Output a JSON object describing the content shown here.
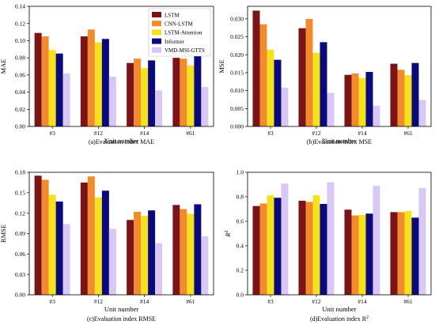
{
  "colors": [
    "#7b1416",
    "#f28a2e",
    "#f5e11c",
    "#0a0a7a",
    "#d9c7f5"
  ],
  "chart_data": [
    {
      "type": "bar",
      "caption": "(a)Evaluation index MAE",
      "xlabel": "Unit number",
      "ylabel": "MAE",
      "ylabel_sup": "",
      "ylim": [
        0,
        0.14
      ],
      "yticks": [
        0,
        0.02,
        0.04,
        0.06,
        0.08,
        0.1,
        0.12,
        0.14
      ],
      "ytick_labels": [
        "0.00",
        "0.02",
        "0.04",
        "0.06",
        "0.08",
        "0.10",
        "0.12",
        "0.14"
      ],
      "categories": [
        "#3",
        "#12",
        "#14",
        "#61"
      ],
      "legend": true,
      "legend_position": "top-right",
      "series": [
        {
          "name": "LSTM",
          "values": [
            0.109,
            0.105,
            0.074,
            0.08
          ]
        },
        {
          "name": "CNN-LSTM",
          "values": [
            0.105,
            0.113,
            0.079,
            0.079
          ]
        },
        {
          "name": "LSTM-Attention",
          "values": [
            0.089,
            0.098,
            0.068,
            0.071
          ]
        },
        {
          "name": "Informer",
          "values": [
            0.085,
            0.102,
            0.077,
            0.084
          ]
        },
        {
          "name": "VMD-MSI-GTTS",
          "values": [
            0.062,
            0.058,
            0.042,
            0.046
          ]
        }
      ]
    },
    {
      "type": "bar",
      "caption": "(b)Evaluation index MSE",
      "xlabel": "Unit number",
      "ylabel": "MSE",
      "ylabel_sup": "",
      "ylim": [
        0,
        0.0335
      ],
      "yticks": [
        0,
        0.005,
        0.01,
        0.015,
        0.02,
        0.025,
        0.03
      ],
      "ytick_labels": [
        "0.000",
        "0.005",
        "0.010",
        "0.015",
        "0.020",
        "0.025",
        "0.030"
      ],
      "categories": [
        "#3",
        "#12",
        "#14",
        "#61"
      ],
      "legend": false,
      "series": [
        {
          "name": "LSTM",
          "values": [
            0.0323,
            0.0274,
            0.0144,
            0.0175
          ]
        },
        {
          "name": "CNN-LSTM",
          "values": [
            0.0285,
            0.03,
            0.0148,
            0.0158
          ]
        },
        {
          "name": "LSTM-Attention",
          "values": [
            0.0214,
            0.0205,
            0.0135,
            0.0143
          ]
        },
        {
          "name": "Informer",
          "values": [
            0.0186,
            0.0235,
            0.0152,
            0.0177
          ]
        },
        {
          "name": "VMD-MSI-GTTS",
          "values": [
            0.0108,
            0.0094,
            0.0058,
            0.0074
          ]
        }
      ]
    },
    {
      "type": "bar",
      "caption": "(c)Evaluation index RMSE",
      "xlabel": "Unit number",
      "ylabel": "RMSE",
      "ylabel_sup": "",
      "ylim": [
        0,
        0.18
      ],
      "yticks": [
        0,
        0.03,
        0.06,
        0.09,
        0.12,
        0.15,
        0.18
      ],
      "ytick_labels": [
        "0.00",
        "0.03",
        "0.06",
        "0.09",
        "0.12",
        "0.15",
        "0.18"
      ],
      "categories": [
        "#3",
        "#12",
        "#14",
        "#61"
      ],
      "legend": false,
      "series": [
        {
          "name": "LSTM",
          "values": [
            0.175,
            0.165,
            0.11,
            0.132
          ]
        },
        {
          "name": "CNN-LSTM",
          "values": [
            0.169,
            0.174,
            0.122,
            0.126
          ]
        },
        {
          "name": "LSTM-Attention",
          "values": [
            0.147,
            0.143,
            0.116,
            0.119
          ]
        },
        {
          "name": "Informer",
          "values": [
            0.137,
            0.153,
            0.124,
            0.133
          ]
        },
        {
          "name": "VMD-MSI-GTTS",
          "values": [
            0.104,
            0.097,
            0.076,
            0.086
          ]
        }
      ]
    },
    {
      "type": "bar",
      "caption": "(d)Evaluation index R",
      "caption_sup": "2",
      "xlabel": "Unit number",
      "ylabel": "R",
      "ylabel_sup": "2",
      "ylim": [
        0,
        1.0
      ],
      "yticks": [
        0,
        0.2,
        0.4,
        0.6,
        0.8,
        1.0
      ],
      "ytick_labels": [
        "0.0",
        "0.2",
        "0.4",
        "0.6",
        "0.8",
        "1.0"
      ],
      "categories": [
        "#3",
        "#12",
        "#14",
        "#61"
      ],
      "legend": false,
      "series": [
        {
          "name": "LSTM",
          "values": [
            0.725,
            0.768,
            0.695,
            0.675
          ]
        },
        {
          "name": "CNN-LSTM",
          "values": [
            0.745,
            0.758,
            0.648,
            0.675
          ]
        },
        {
          "name": "LSTM-Attention",
          "values": [
            0.812,
            0.812,
            0.652,
            0.685
          ]
        },
        {
          "name": "Informer",
          "values": [
            0.792,
            0.742,
            0.663,
            0.63
          ]
        },
        {
          "name": "VMD-MSI-GTTS",
          "values": [
            0.908,
            0.918,
            0.89,
            0.872
          ]
        }
      ]
    }
  ]
}
